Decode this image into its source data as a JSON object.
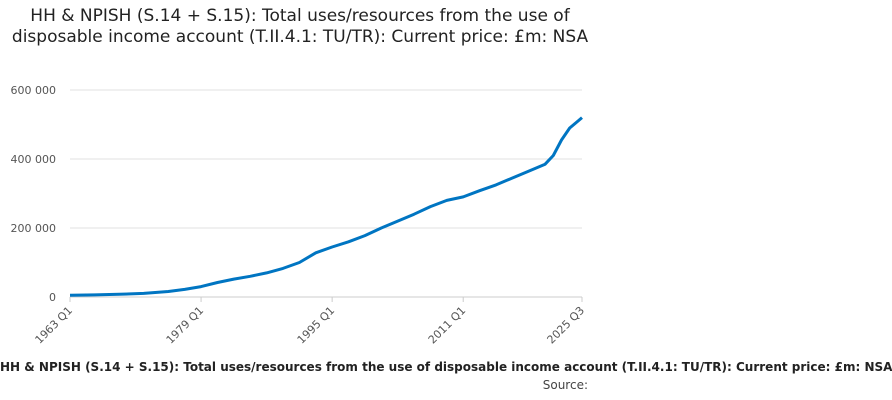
{
  "chart_data": {
    "type": "line",
    "title": "HH & NPISH (S.14 + S.15): Total uses/resources from the use of disposable income account (T.II.4.1: TU/TR): Current price: £m: NSA",
    "series": [
      {
        "name": "HH & NPISH (S.14 + S.15): Total uses/resources from the use of disposable income account (T.II.4.1: TU/TR): Current price: £m: NSA",
        "color": "#0075c2",
        "points": [
          [
            1963,
            5000
          ],
          [
            1966,
            6200
          ],
          [
            1969,
            7800
          ],
          [
            1972,
            10500
          ],
          [
            1975,
            16000
          ],
          [
            1977,
            22000
          ],
          [
            1979,
            30000
          ],
          [
            1981,
            42000
          ],
          [
            1983,
            52000
          ],
          [
            1985,
            60000
          ],
          [
            1987,
            70000
          ],
          [
            1989,
            83000
          ],
          [
            1991,
            100000
          ],
          [
            1993,
            128000
          ],
          [
            1995,
            145000
          ],
          [
            1997,
            160000
          ],
          [
            1999,
            178000
          ],
          [
            2001,
            200000
          ],
          [
            2003,
            220000
          ],
          [
            2005,
            240000
          ],
          [
            2007,
            262000
          ],
          [
            2009,
            280000
          ],
          [
            2011,
            290000
          ],
          [
            2013,
            308000
          ],
          [
            2015,
            325000
          ],
          [
            2017,
            345000
          ],
          [
            2019,
            365000
          ],
          [
            2021,
            385000
          ],
          [
            2022,
            410000
          ],
          [
            2023,
            455000
          ],
          [
            2024,
            490000
          ],
          [
            2025,
            510000
          ],
          [
            2025.5,
            520000
          ]
        ]
      }
    ],
    "x_ticks": [
      {
        "value": 1963,
        "label": "1963 Q1"
      },
      {
        "value": 1979,
        "label": "1979 Q1"
      },
      {
        "value": 1995,
        "label": "1995 Q1"
      },
      {
        "value": 2011,
        "label": "2011 Q1"
      },
      {
        "value": 2025.5,
        "label": "2025 Q3"
      }
    ],
    "y_ticks": [
      {
        "value": 0,
        "label": "0"
      },
      {
        "value": 200000,
        "label": "200 000"
      },
      {
        "value": 400000,
        "label": "400 000"
      },
      {
        "value": 600000,
        "label": "600 000"
      }
    ],
    "xlim": [
      1963,
      2025.5
    ],
    "ylim": [
      0,
      600000
    ],
    "legend_text": "HH & NPISH (S.14 + S.15): Total uses/resources from the use of disposable income account (T.II.4.1: TU/TR): Current price: £m: NSA",
    "source_label": "Source:",
    "grid": true
  }
}
